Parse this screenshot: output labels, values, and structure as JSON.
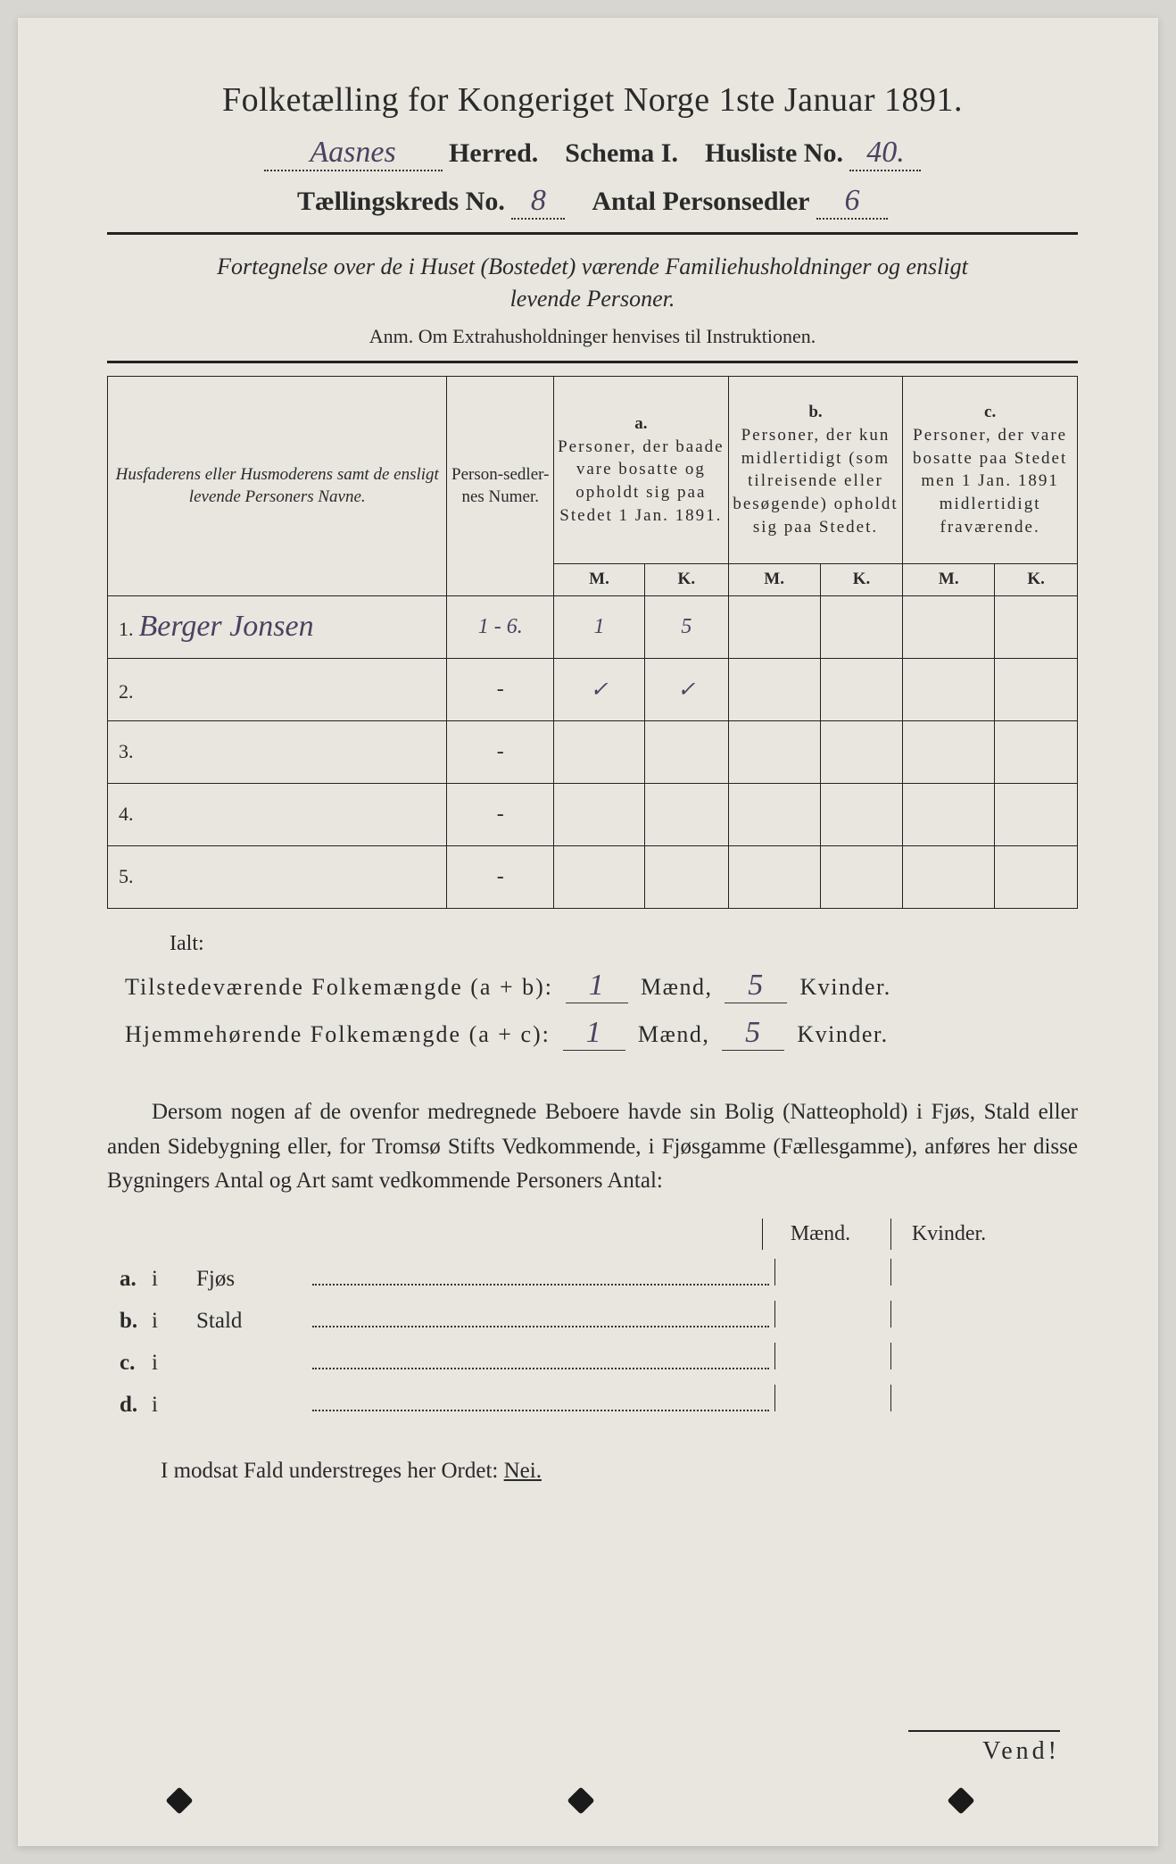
{
  "colors": {
    "page_bg": "#e8e6df",
    "ink": "#2a2a2a",
    "handwriting": "#4a4260",
    "border": "#222222"
  },
  "typography": {
    "title_size_pt": 38,
    "body_size_pt": 25,
    "table_header_size_pt": 19,
    "hand_size_pt": 34
  },
  "header": {
    "title": "Folketælling for Kongeriget Norge 1ste Januar 1891.",
    "herred_value": "Aasnes",
    "herred_label": "Herred.",
    "schema_label": "Schema I.",
    "husliste_label": "Husliste No.",
    "husliste_value": "40.",
    "kreds_label": "Tællingskreds No.",
    "kreds_value": "8",
    "personsedler_label": "Antal Personsedler",
    "personsedler_value": "6"
  },
  "fortegnelse": {
    "line1": "Fortegnelse over de i Huset (Bostedet) værende Familiehusholdninger og ensligt",
    "line2": "levende Personer.",
    "anm": "Anm. Om Extrahusholdninger henvises til Instruktionen."
  },
  "table": {
    "col_names_header": "Husfaderens eller Husmoderens samt de ensligt levende Personers Navne.",
    "col_ps_header": "Person-sedler-nes Numer.",
    "col_a_label": "a.",
    "col_a_text": "Personer, der baade vare bosatte og opholdt sig paa Stedet 1 Jan. 1891.",
    "col_b_label": "b.",
    "col_b_text": "Personer, der kun midlertidigt (som tilreisende eller besøgende) opholdt sig paa Stedet.",
    "col_c_label": "c.",
    "col_c_text": "Personer, der vare bosatte paa Stedet men 1 Jan. 1891 midlertidigt fraværende.",
    "m_label": "M.",
    "k_label": "K.",
    "rows": [
      {
        "num": "1.",
        "name": "Berger Jonsen",
        "ps": "1 - 6.",
        "a_m": "1",
        "a_k": "5",
        "b_m": "",
        "b_k": "",
        "c_m": "",
        "c_k": ""
      },
      {
        "num": "2.",
        "name": "",
        "ps": "-",
        "a_m": "✓",
        "a_k": "✓",
        "b_m": "",
        "b_k": "",
        "c_m": "",
        "c_k": ""
      },
      {
        "num": "3.",
        "name": "",
        "ps": "-",
        "a_m": "",
        "a_k": "",
        "b_m": "",
        "b_k": "",
        "c_m": "",
        "c_k": ""
      },
      {
        "num": "4.",
        "name": "",
        "ps": "-",
        "a_m": "",
        "a_k": "",
        "b_m": "",
        "b_k": "",
        "c_m": "",
        "c_k": ""
      },
      {
        "num": "5.",
        "name": "",
        "ps": "-",
        "a_m": "",
        "a_k": "",
        "b_m": "",
        "b_k": "",
        "c_m": "",
        "c_k": ""
      }
    ]
  },
  "totals": {
    "ialt_label": "Ialt:",
    "tilstede_label": "Tilstedeværende Folkemængde (a + b):",
    "tilstede_m": "1",
    "tilstede_k": "5",
    "hjemme_label": "Hjemmehørende Folkemængde (a + c):",
    "hjemme_m": "1",
    "hjemme_k": "5",
    "maend_label": "Mænd,",
    "kvinder_label": "Kvinder."
  },
  "dersom": {
    "text": "Dersom nogen af de ovenfor medregnede Beboere havde sin Bolig (Natteophold) i Fjøs, Stald eller anden Sidebygning eller, for Tromsø Stifts Vedkommende, i Fjøsgamme (Fællesgamme), anføres her disse Bygningers Antal og Art samt vedkommende Personers Antal:"
  },
  "bygninger": {
    "maend": "Mænd.",
    "kvinder": "Kvinder.",
    "rows": [
      {
        "lbl": "a.",
        "i": "i",
        "name": "Fjøs"
      },
      {
        "lbl": "b.",
        "i": "i",
        "name": "Stald"
      },
      {
        "lbl": "c.",
        "i": "i",
        "name": ""
      },
      {
        "lbl": "d.",
        "i": "i",
        "name": ""
      }
    ]
  },
  "footer": {
    "modsat": "I modsat Fald understreges her Ordet: ",
    "nei": "Nei.",
    "vend": "Vend!"
  }
}
